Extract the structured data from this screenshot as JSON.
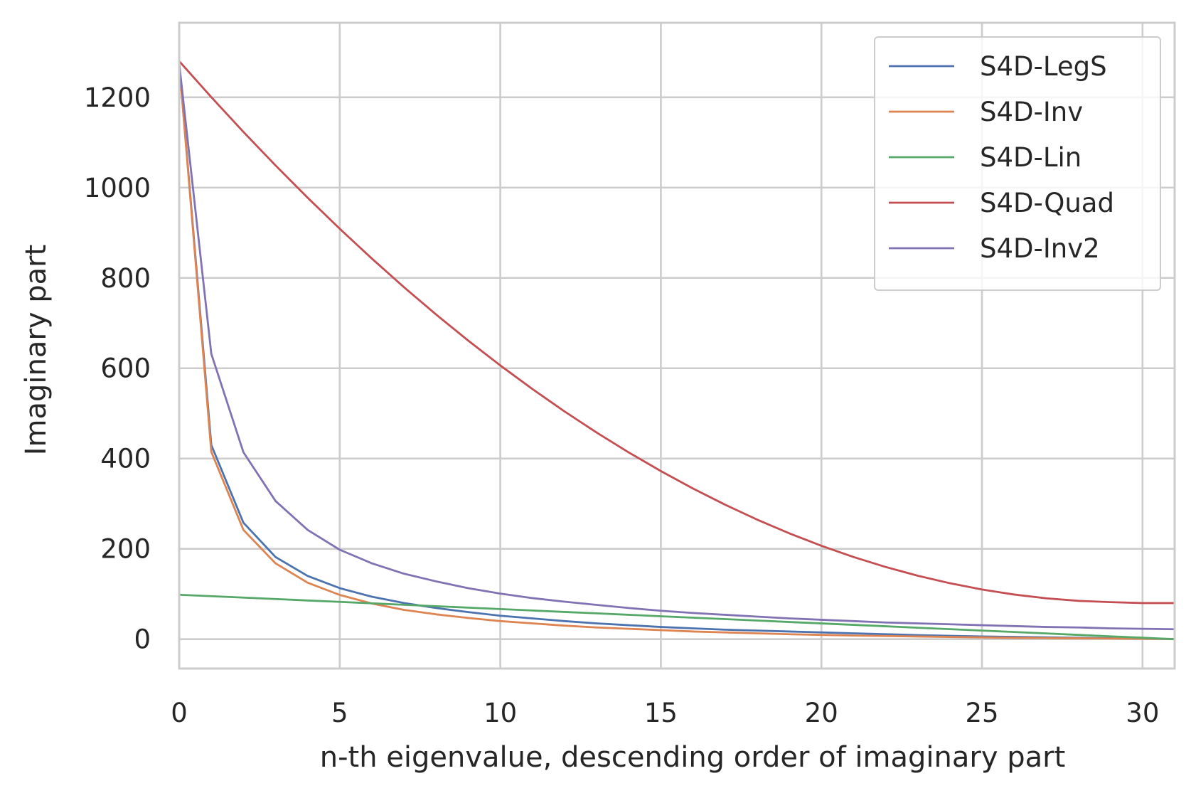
{
  "chart_data": {
    "type": "line",
    "title": "",
    "xlabel": "n-th eigenvalue, descending order of imaginary part",
    "ylabel": "Imaginary part",
    "xlim": [
      0,
      31
    ],
    "ylim": [
      -65,
      1365
    ],
    "xticks": [
      0,
      5,
      10,
      15,
      20,
      25,
      30
    ],
    "yticks": [
      0,
      200,
      400,
      600,
      800,
      1000,
      1200
    ],
    "grid": true,
    "legend_position": "top-right",
    "x": [
      0,
      1,
      2,
      3,
      4,
      5,
      6,
      7,
      8,
      9,
      10,
      11,
      12,
      13,
      14,
      15,
      16,
      17,
      18,
      19,
      20,
      21,
      22,
      23,
      24,
      25,
      26,
      27,
      28,
      29,
      30,
      31
    ],
    "series": [
      {
        "name": "S4D-LegS",
        "color": "#4c72b0",
        "values": [
          1275,
          430,
          258,
          182,
          140,
          113,
          94,
          80,
          69,
          60,
          52,
          46,
          40,
          35,
          31,
          27,
          24,
          21,
          19,
          17,
          15,
          13,
          11,
          9,
          7.5,
          6,
          5,
          4,
          3,
          2,
          1,
          0.5
        ]
      },
      {
        "name": "S4D-Inv",
        "color": "#dd8452",
        "values": [
          1275,
          415,
          242,
          168,
          125,
          98,
          79,
          65,
          55,
          47,
          40,
          35,
          30,
          26,
          23,
          20,
          17,
          15,
          13,
          11,
          9.5,
          8,
          7,
          6,
          5,
          4,
          3,
          2.5,
          2,
          1.5,
          1,
          0.5
        ]
      },
      {
        "name": "S4D-Lin",
        "color": "#55a868",
        "values": [
          98.4,
          95.2,
          92.1,
          88.9,
          85.7,
          82.6,
          79.4,
          76.2,
          73.0,
          69.9,
          66.7,
          63.5,
          60.3,
          57.2,
          54.0,
          50.8,
          47.6,
          44.5,
          41.3,
          38.1,
          34.9,
          31.8,
          28.6,
          25.4,
          22.2,
          19.1,
          15.9,
          12.7,
          9.5,
          6.3,
          3.2,
          0
        ]
      },
      {
        "name": "S4D-Quad",
        "color": "#c44e52",
        "values": [
          1280,
          1200.3,
          1123.3,
          1049.1,
          977.6,
          908.8,
          842.8,
          779.5,
          719.0,
          661.2,
          606.2,
          553.9,
          504.3,
          457.5,
          413.5,
          372.2,
          333.6,
          297.8,
          264.7,
          234.4,
          206.8,
          182.0,
          159.9,
          140.5,
          123.9,
          110.0,
          98.9,
          90.5,
          84.9,
          82.0,
          80.0,
          80.0
        ]
      },
      {
        "name": "S4D-Inv2",
        "color": "#8172b3",
        "values": [
          1275,
          632,
          414,
          306,
          242,
          198,
          168,
          145,
          128,
          113,
          101,
          91,
          83,
          76,
          69,
          63,
          58,
          54,
          50,
          46,
          43,
          40,
          37,
          35,
          33,
          31,
          29,
          27,
          26,
          24,
          23,
          22
        ]
      }
    ]
  }
}
